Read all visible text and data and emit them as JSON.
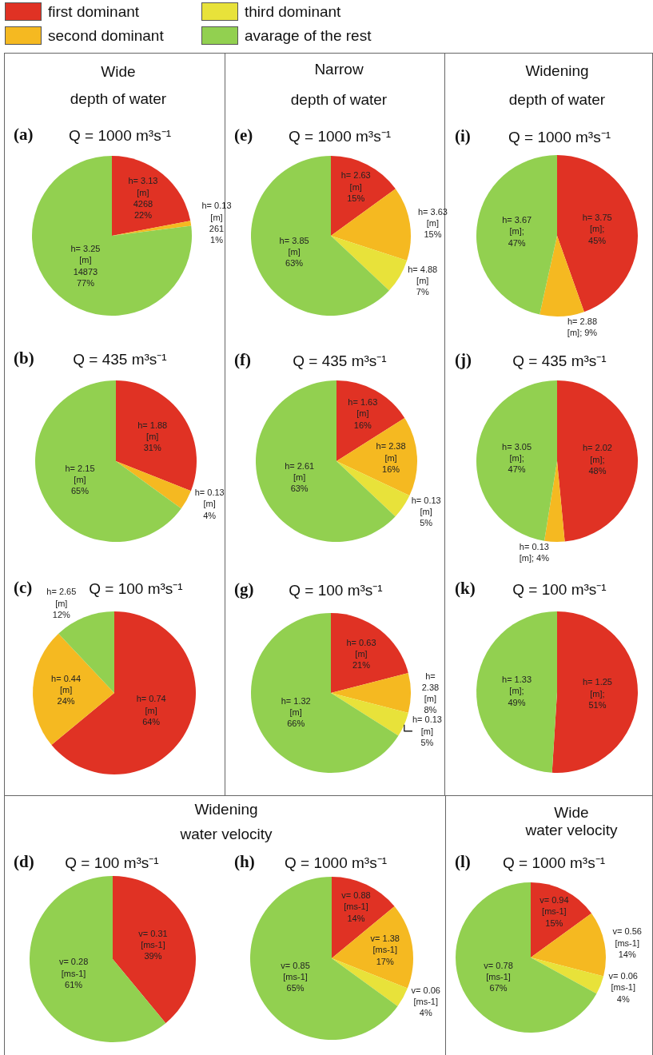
{
  "chart_data": [
    {
      "type": "pie",
      "subtitle": "Wide\ndepth of water",
      "title": "Q = 1000 m³s⁻¹",
      "annotations": [
        "(a)"
      ],
      "categories": [
        null,
        null,
        null
      ],
      "values": [
        22,
        1,
        77
      ],
      "colors": [
        "#e03224",
        "#f5b921",
        "#92d050"
      ],
      "value_labels": [
        "h= 3.13\n[m]\n4268\n22%",
        "h= 0.13\n[m]\n261\n1%",
        "h= 3.25\n[m]\n14873\n77%"
      ]
    },
    {
      "type": "pie",
      "subtitle": "Narrow\ndepth of water",
      "title": "Q = 1000 m³s⁻¹",
      "annotations": [
        "(e)"
      ],
      "legend": "top left",
      "categories": [
        "first dominant",
        "second dominant",
        "third dominant",
        "avarage of the rest"
      ],
      "values": [
        15,
        15,
        7,
        63
      ],
      "colors": [
        "#e03224",
        "#f5b921",
        "#e8e23a",
        "#92d050"
      ],
      "value_labels": [
        "h= 2.63\n[m]\n15%",
        "h= 3.63\n[m]\n15%",
        "h= 4.88\n[m]\n7%",
        "h= 3.85\n[m]\n63%"
      ]
    },
    {
      "type": "pie",
      "subtitle": "Widening\ndepth of water",
      "title": "Q = 1000 m³s⁻¹",
      "annotations": [
        "(i)"
      ],
      "categories": [
        null,
        null,
        null
      ],
      "values": [
        45,
        9,
        47
      ],
      "colors": [
        "#e03224",
        "#f5b921",
        "#92d050"
      ],
      "value_labels": [
        "h= 3.75\n[m];\n45%",
        "h= 2.88\n[m]; 9%",
        "h= 3.67\n[m];\n47%"
      ]
    },
    {
      "type": "pie",
      "title": "Q = 435 m³s⁻¹",
      "annotations": [
        "(b)"
      ],
      "categories": [
        null,
        null,
        null
      ],
      "values": [
        31,
        4,
        65
      ],
      "colors": [
        "#e03224",
        "#f5b921",
        "#92d050"
      ],
      "value_labels": [
        "h= 1.88\n[m]\n31%",
        "h= 0.13\n[m]\n4%",
        "h= 2.15\n[m]\n65%"
      ]
    },
    {
      "type": "pie",
      "title": "Q = 435 m³s⁻¹",
      "annotations": [
        "(f)"
      ],
      "categories": [
        null,
        null,
        null,
        null
      ],
      "values": [
        16,
        16,
        5,
        63
      ],
      "colors": [
        "#e03224",
        "#f5b921",
        "#e8e23a",
        "#92d050"
      ],
      "value_labels": [
        "h= 1.63\n[m]\n16%",
        "h= 2.38\n[m]\n16%",
        "h= 0.13\n[m]\n5%",
        "h= 2.61\n[m]\n63%"
      ]
    },
    {
      "type": "pie",
      "title": "Q = 435 m³s⁻¹",
      "annotations": [
        "(j)"
      ],
      "categories": [
        null,
        null,
        null
      ],
      "values": [
        48,
        4,
        47
      ],
      "colors": [
        "#e03224",
        "#f5b921",
        "#92d050"
      ],
      "value_labels": [
        "h= 2.02\n[m];\n48%",
        "h= 0.13\n[m]; 4%",
        "h= 3.05\n[m];\n47%"
      ]
    },
    {
      "type": "pie",
      "title": "Q = 100 m³s⁻¹",
      "annotations": [
        "(c)"
      ],
      "categories": [
        null,
        null,
        null
      ],
      "values": [
        64,
        24,
        12
      ],
      "colors": [
        "#e03224",
        "#f5b921",
        "#92d050"
      ],
      "value_labels": [
        "h= 0.74\n[m]\n64%",
        "h= 0.44\n[m]\n24%",
        "h= 2.65\n[m]\n12%"
      ]
    },
    {
      "type": "pie",
      "title": "Q = 100 m³s⁻¹",
      "annotations": [
        "(g)"
      ],
      "categories": [
        null,
        null,
        null,
        null
      ],
      "values": [
        21,
        8,
        5,
        66
      ],
      "colors": [
        "#e03224",
        "#f5b921",
        "#e8e23a",
        "#92d050"
      ],
      "value_labels": [
        "h= 0.63\n[m]\n21%",
        "h=\n2.38\n[m]\n8%",
        "h= 0.13\n[m]\n5%",
        "h= 1.32\n[m]\n66%"
      ]
    },
    {
      "type": "pie",
      "title": "Q = 100 m³s⁻¹",
      "annotations": [
        "(k)"
      ],
      "categories": [
        null,
        null
      ],
      "values": [
        51,
        49
      ],
      "colors": [
        "#e03224",
        "#92d050"
      ],
      "value_labels": [
        "h= 1.25\n[m];\n51%",
        "h= 1.33\n[m];\n49%"
      ]
    },
    {
      "type": "pie",
      "subtitle": "Widening\nwater velocity",
      "title": "Q = 100 m³s⁻¹",
      "annotations": [
        "(d)"
      ],
      "categories": [
        null,
        null
      ],
      "values": [
        39,
        61
      ],
      "colors": [
        "#e03224",
        "#92d050"
      ],
      "value_labels": [
        "v= 0.31\n[ms-1]\n39%",
        "v= 0.28\n[ms-1]\n61%"
      ]
    },
    {
      "type": "pie",
      "title": "Q = 1000 m³s⁻¹",
      "annotations": [
        "(h)"
      ],
      "categories": [
        null,
        null,
        null,
        null
      ],
      "values": [
        14,
        17,
        4,
        65
      ],
      "colors": [
        "#e03224",
        "#f5b921",
        "#e8e23a",
        "#92d050"
      ],
      "value_labels": [
        "v= 0.88\n[ms-1]\n14%",
        "v= 1.38\n[ms-1]\n17%",
        "v= 0.06\n[ms-1]\n4%",
        "v= 0.85\n[ms-1]\n65%"
      ]
    },
    {
      "type": "pie",
      "subtitle": "Wide\nwater velocity",
      "title": "Q = 1000 m³s⁻¹",
      "annotations": [
        "(l)"
      ],
      "categories": [
        null,
        null,
        null,
        null
      ],
      "values": [
        15,
        14,
        4,
        67
      ],
      "colors": [
        "#e03224",
        "#f5b921",
        "#e8e23a",
        "#92d050"
      ],
      "value_labels": [
        "v= 0.94\n[ms-1]\n15%",
        "v= 0.56\n[ms-1]\n14%",
        "v= 0.06\n[ms-1]\n4%",
        "v= 0.78\n[ms-1]\n67%"
      ]
    }
  ]
}
